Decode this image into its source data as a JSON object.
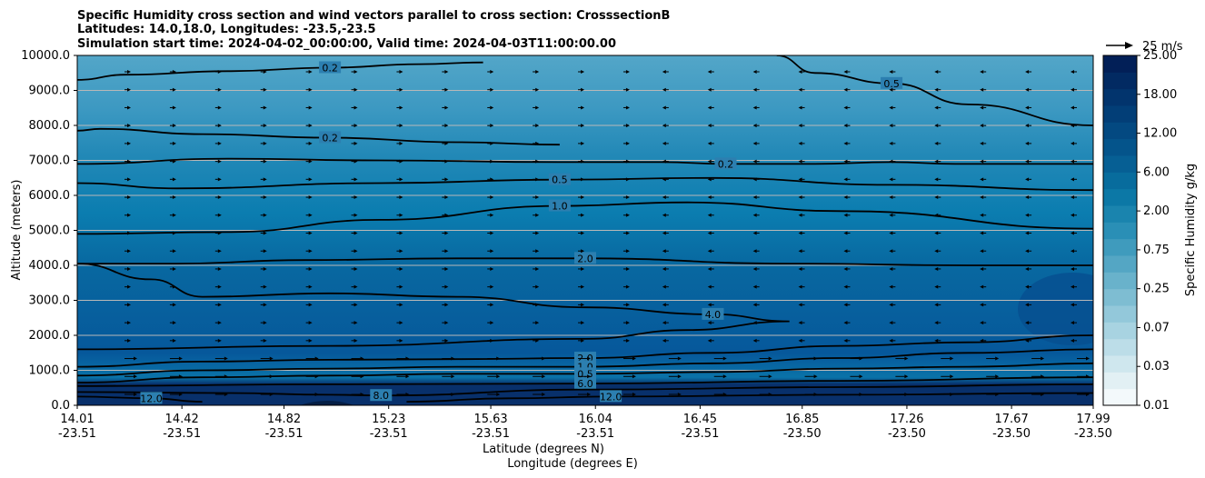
{
  "chart_data": {
    "type": "heatmap",
    "title_lines": [
      "Specific Humidity cross section and wind vectors parallel to cross section: CrosssectionB",
      "Latitudes: 14.0,18.0, Longitudes: -23.5,-23.5",
      "Simulation start time: 2024-04-02_00:00:00, Valid time: 2024-04-03T11:00:00.00"
    ],
    "ylabel": "Altitude (meters)",
    "xlabel_lat": "Latitude (degrees N)",
    "xlabel_lon": "Longitude (degrees E)",
    "ylim": [
      0,
      10000
    ],
    "yticks": [
      "0.0",
      "1000.0",
      "2000.0",
      "3000.0",
      "4000.0",
      "5000.0",
      "6000.0",
      "7000.0",
      "8000.0",
      "9000.0",
      "10000.0"
    ],
    "xlim": [
      14.01,
      17.99
    ],
    "xticks": [
      {
        "lat": "14.01",
        "lon": "-23.51"
      },
      {
        "lat": "14.42",
        "lon": "-23.51"
      },
      {
        "lat": "14.82",
        "lon": "-23.51"
      },
      {
        "lat": "15.23",
        "lon": "-23.51"
      },
      {
        "lat": "15.63",
        "lon": "-23.51"
      },
      {
        "lat": "16.04",
        "lon": "-23.51"
      },
      {
        "lat": "16.45",
        "lon": "-23.51"
      },
      {
        "lat": "16.85",
        "lon": "-23.50"
      },
      {
        "lat": "17.26",
        "lon": "-23.50"
      },
      {
        "lat": "17.67",
        "lon": "-23.50"
      },
      {
        "lat": "17.99",
        "lon": "-23.50"
      }
    ],
    "grid": true,
    "colorbar": {
      "label": "Specific Humidity g/kg",
      "ticks": [
        "0.01",
        "0.03",
        "0.07",
        "0.25",
        "0.75",
        "2.00",
        "6.00",
        "12.00",
        "18.00",
        "25.00"
      ]
    },
    "quiver_key": "25 m/s",
    "contours": [
      {
        "level": "0.2",
        "points": [
          [
            14.01,
            9300
          ],
          [
            14.2,
            9450
          ],
          [
            14.6,
            9550
          ],
          [
            15.0,
            9650
          ],
          [
            15.35,
            9750
          ],
          [
            15.6,
            9800
          ]
        ]
      },
      {
        "level": "0.2",
        "points": [
          [
            14.01,
            7850
          ],
          [
            14.1,
            7900
          ],
          [
            14.5,
            7750
          ],
          [
            15.0,
            7650
          ],
          [
            15.5,
            7520
          ],
          [
            15.9,
            7450
          ]
        ]
      },
      {
        "level": "0.2",
        "points": [
          [
            14.01,
            6900
          ],
          [
            14.6,
            7050
          ],
          [
            15.2,
            7000
          ],
          [
            15.9,
            6950
          ],
          [
            16.3,
            6950
          ],
          [
            16.55,
            6900
          ],
          [
            16.9,
            6900
          ],
          [
            17.2,
            6950
          ],
          [
            17.45,
            6900
          ],
          [
            17.99,
            6900
          ]
        ]
      },
      {
        "level": "0.5",
        "points": [
          [
            14.01,
            6350
          ],
          [
            14.4,
            6200
          ],
          [
            15.2,
            6350
          ],
          [
            15.9,
            6450
          ],
          [
            16.5,
            6500
          ],
          [
            17.2,
            6300
          ],
          [
            17.99,
            6150
          ]
        ]
      },
      {
        "level": "0.5",
        "points": [
          [
            16.75,
            10000
          ],
          [
            16.9,
            9500
          ],
          [
            17.2,
            9200
          ],
          [
            17.5,
            8600
          ],
          [
            17.99,
            8000
          ]
        ]
      },
      {
        "level": "1.0",
        "points": [
          [
            14.01,
            4900
          ],
          [
            14.6,
            4950
          ],
          [
            15.2,
            5300
          ],
          [
            15.9,
            5700
          ],
          [
            16.4,
            5800
          ],
          [
            17.0,
            5550
          ],
          [
            17.99,
            5050
          ]
        ]
      },
      {
        "level": "2.0",
        "points": [
          [
            14.01,
            4050
          ],
          [
            14.4,
            4050
          ],
          [
            14.9,
            4150
          ],
          [
            15.5,
            4200
          ],
          [
            16.0,
            4200
          ],
          [
            16.8,
            4050
          ],
          [
            17.5,
            4000
          ],
          [
            17.99,
            4000
          ]
        ]
      },
      {
        "level": "4.0",
        "points": [
          [
            14.01,
            4050
          ],
          [
            14.3,
            3600
          ],
          [
            14.5,
            3100
          ],
          [
            15.0,
            3200
          ],
          [
            15.5,
            3100
          ],
          [
            16.0,
            2800
          ],
          [
            16.5,
            2600
          ],
          [
            16.8,
            2400
          ],
          [
            16.4,
            2150
          ],
          [
            16.0,
            1900
          ],
          [
            15.0,
            1700
          ],
          [
            14.01,
            1600
          ]
        ]
      },
      {
        "level": "2.0",
        "points": [
          [
            14.01,
            1100
          ],
          [
            14.5,
            1250
          ],
          [
            15.0,
            1300
          ],
          [
            15.5,
            1320
          ],
          [
            16.0,
            1350
          ],
          [
            16.5,
            1500
          ],
          [
            17.0,
            1700
          ],
          [
            17.5,
            1800
          ],
          [
            17.99,
            2000
          ]
        ]
      },
      {
        "level": "1.0",
        "points": [
          [
            14.01,
            850
          ],
          [
            14.5,
            1000
          ],
          [
            15.0,
            1050
          ],
          [
            15.5,
            1100
          ],
          [
            16.0,
            1100
          ],
          [
            16.5,
            1200
          ],
          [
            17.0,
            1350
          ],
          [
            17.5,
            1500
          ],
          [
            17.99,
            1600
          ]
        ]
      },
      {
        "level": "0.5",
        "points": [
          [
            14.01,
            650
          ],
          [
            14.5,
            800
          ],
          [
            15.0,
            850
          ],
          [
            15.5,
            900
          ],
          [
            16.0,
            900
          ],
          [
            16.5,
            950
          ],
          [
            17.0,
            1050
          ],
          [
            17.5,
            1100
          ],
          [
            17.99,
            1200
          ]
        ]
      },
      {
        "level": "6.0",
        "points": [
          [
            14.01,
            550
          ],
          [
            15.0,
            600
          ],
          [
            16.0,
            620
          ],
          [
            17.0,
            700
          ],
          [
            17.99,
            800
          ]
        ]
      },
      {
        "level": "8.0",
        "points": [
          [
            14.01,
            380
          ],
          [
            14.6,
            350
          ],
          [
            15.0,
            300
          ],
          [
            15.2,
            280
          ],
          [
            16.0,
            450
          ],
          [
            17.0,
            520
          ],
          [
            17.99,
            600
          ]
        ]
      },
      {
        "level": "12.0",
        "points": [
          [
            14.01,
            250
          ],
          [
            14.3,
            200
          ],
          [
            14.5,
            100
          ]
        ]
      },
      {
        "level": "12.0",
        "points": [
          [
            15.3,
            100
          ],
          [
            15.7,
            200
          ],
          [
            16.1,
            250
          ],
          [
            17.0,
            300
          ],
          [
            17.99,
            350
          ]
        ]
      }
    ]
  }
}
